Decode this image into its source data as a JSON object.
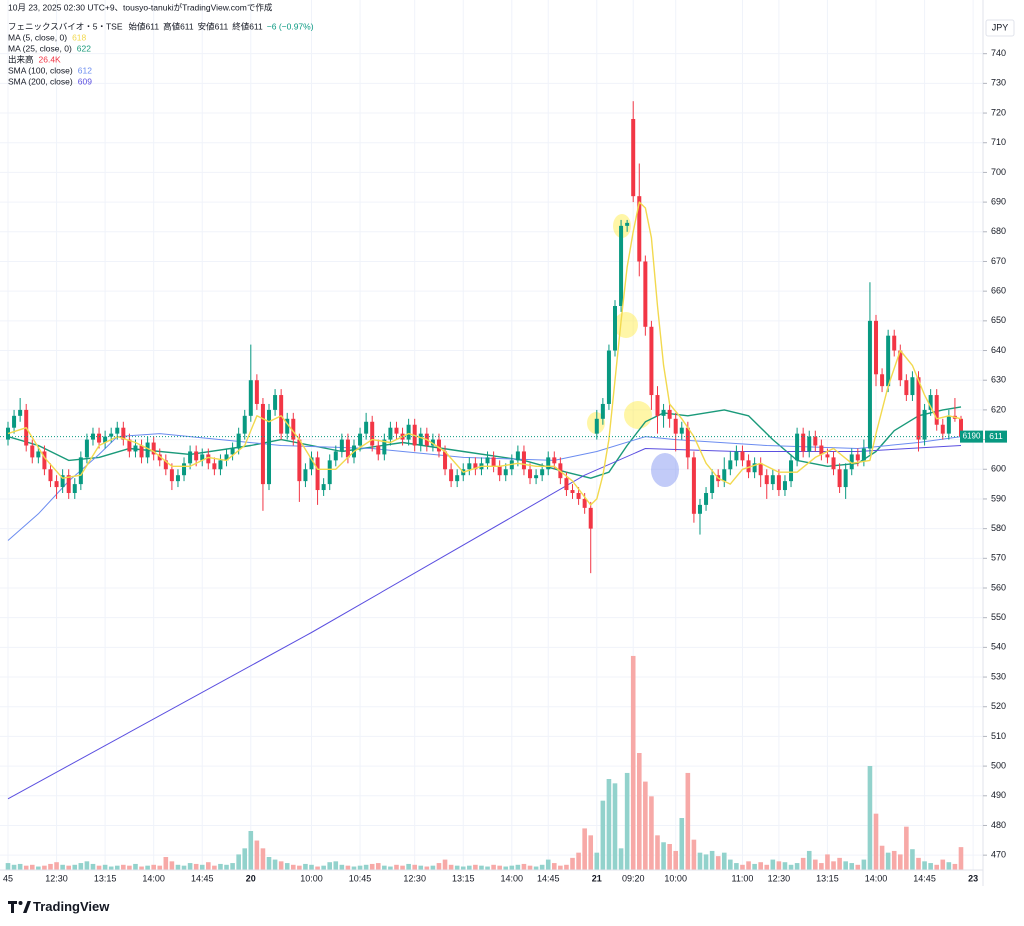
{
  "chart_data": {
    "type": "candlestick",
    "header": "10月 23, 2025 02:30 UTC+9、tousyo-tanukiがTradingView.comで作成",
    "symbol": "フェニックスバイオ・5・TSE",
    "ohlc_labels": [
      "始値611",
      "高値611",
      "安値611",
      "終値611"
    ],
    "change": "−6 (−0.97%)",
    "currency": "JPY",
    "countdown_label": "6190",
    "watermark": "TradingView",
    "up_color": "#089981",
    "down_color": "#f23645",
    "volume_up_color": "#92d2cc",
    "volume_down_color": "#f7a9a7",
    "ylim": [
      465,
      750
    ],
    "yticks": [
      470,
      480,
      490,
      500,
      510,
      520,
      530,
      540,
      550,
      560,
      570,
      580,
      590,
      600,
      610,
      620,
      630,
      640,
      650,
      660,
      670,
      680,
      690,
      700,
      710,
      720,
      730,
      740
    ],
    "grid": true,
    "vlim": [
      0,
      300
    ],
    "volume_name": "出来高",
    "volume_label": "26.4K",
    "categories": [
      "45",
      null,
      null,
      null,
      null,
      null,
      null,
      null,
      "12:30",
      null,
      null,
      null,
      null,
      null,
      null,
      null,
      "13:15",
      null,
      null,
      null,
      null,
      null,
      null,
      null,
      "14:00",
      null,
      null,
      null,
      null,
      null,
      null,
      null,
      "14:45",
      null,
      null,
      null,
      null,
      null,
      null,
      null,
      "20",
      null,
      null,
      null,
      null,
      null,
      null,
      null,
      null,
      null,
      "10:00",
      null,
      null,
      null,
      null,
      null,
      null,
      null,
      "10:45",
      null,
      null,
      null,
      null,
      null,
      null,
      null,
      null,
      "12:30",
      null,
      null,
      null,
      null,
      null,
      null,
      null,
      "13:15",
      null,
      null,
      null,
      null,
      null,
      null,
      null,
      "14:00",
      null,
      null,
      null,
      null,
      null,
      "14:45",
      null,
      null,
      null,
      null,
      null,
      null,
      null,
      "21",
      null,
      null,
      null,
      null,
      null,
      "09:20",
      null,
      null,
      null,
      null,
      null,
      null,
      "10:00",
      null,
      null,
      null,
      null,
      null,
      null,
      null,
      null,
      null,
      null,
      "11:00",
      null,
      null,
      null,
      null,
      null,
      "12:30",
      null,
      null,
      null,
      null,
      null,
      null,
      null,
      "13:15",
      null,
      null,
      null,
      null,
      null,
      null,
      null,
      "14:00",
      null,
      null,
      null,
      null,
      null,
      null,
      null,
      "14:45",
      null,
      null,
      null,
      null,
      null,
      null,
      null,
      "23"
    ],
    "ohlc": [
      [
        610,
        616,
        608,
        614
      ],
      [
        614,
        620,
        612,
        618
      ],
      [
        618,
        624,
        616,
        620
      ],
      [
        620,
        622,
        606,
        608
      ],
      [
        608,
        610,
        602,
        604
      ],
      [
        604,
        608,
        602,
        606
      ],
      [
        606,
        608,
        598,
        600
      ],
      [
        600,
        602,
        594,
        596
      ],
      [
        596,
        598,
        590,
        594
      ],
      [
        594,
        600,
        592,
        598
      ],
      [
        598,
        600,
        590,
        592
      ],
      [
        592,
        597,
        590,
        595
      ],
      [
        595,
        606,
        593,
        604
      ],
      [
        604,
        612,
        602,
        610
      ],
      [
        610,
        614,
        608,
        612
      ],
      [
        612,
        614,
        607,
        609
      ],
      [
        609,
        613,
        607,
        611
      ],
      [
        611,
        614,
        609,
        612
      ],
      [
        612,
        616,
        610,
        614
      ],
      [
        614,
        616,
        608,
        610
      ],
      [
        610,
        612,
        604,
        606
      ],
      [
        606,
        610,
        604,
        608
      ],
      [
        608,
        610,
        602,
        604
      ],
      [
        604,
        611,
        602,
        609
      ],
      [
        609,
        611,
        603,
        605
      ],
      [
        605,
        607,
        601,
        603
      ],
      [
        603,
        605,
        598,
        600
      ],
      [
        600,
        602,
        593,
        596
      ],
      [
        596,
        600,
        594,
        598
      ],
      [
        598,
        604,
        596,
        602
      ],
      [
        602,
        608,
        600,
        606
      ],
      [
        606,
        608,
        601,
        603
      ],
      [
        603,
        607,
        601,
        605
      ],
      [
        605,
        607,
        600,
        602
      ],
      [
        602,
        604,
        598,
        600
      ],
      [
        600,
        605,
        598,
        603
      ],
      [
        603,
        607,
        601,
        605
      ],
      [
        605,
        609,
        603,
        607
      ],
      [
        607,
        614,
        605,
        612
      ],
      [
        612,
        620,
        610,
        618
      ],
      [
        618,
        642,
        616,
        630
      ],
      [
        630,
        632,
        620,
        622
      ],
      [
        622,
        624,
        586,
        595
      ],
      [
        595,
        622,
        593,
        620
      ],
      [
        620,
        627,
        618,
        625
      ],
      [
        625,
        627,
        610,
        612
      ],
      [
        612,
        619,
        610,
        617
      ],
      [
        617,
        619,
        608,
        610
      ],
      [
        610,
        612,
        589,
        596
      ],
      [
        596,
        602,
        594,
        600
      ],
      [
        600,
        606,
        598,
        604
      ],
      [
        604,
        606,
        588,
        593
      ],
      [
        593,
        597,
        591,
        595
      ],
      [
        595,
        605,
        593,
        603
      ],
      [
        603,
        608,
        601,
        606
      ],
      [
        606,
        612,
        604,
        610
      ],
      [
        610,
        612,
        602,
        604
      ],
      [
        604,
        610,
        602,
        608
      ],
      [
        608,
        614,
        606,
        612
      ],
      [
        612,
        619,
        610,
        616
      ],
      [
        616,
        618,
        606,
        608
      ],
      [
        608,
        610,
        603,
        605
      ],
      [
        605,
        612,
        603,
        610
      ],
      [
        610,
        616,
        608,
        614
      ],
      [
        614,
        616,
        610,
        612
      ],
      [
        612,
        614,
        608,
        610
      ],
      [
        610,
        617,
        608,
        615
      ],
      [
        615,
        617,
        606,
        608
      ],
      [
        608,
        614,
        606,
        612
      ],
      [
        612,
        614,
        606,
        608
      ],
      [
        608,
        612,
        606,
        610
      ],
      [
        610,
        612,
        604,
        606
      ],
      [
        606,
        608,
        598,
        600
      ],
      [
        600,
        602,
        594,
        596
      ],
      [
        596,
        600,
        594,
        598
      ],
      [
        598,
        602,
        596,
        600
      ],
      [
        600,
        604,
        598,
        602
      ],
      [
        602,
        604,
        598,
        600
      ],
      [
        600,
        604,
        598,
        602
      ],
      [
        602,
        606,
        600,
        604
      ],
      [
        604,
        606,
        599,
        601
      ],
      [
        601,
        603,
        596,
        598
      ],
      [
        598,
        602,
        596,
        600
      ],
      [
        600,
        605,
        598,
        603
      ],
      [
        603,
        608,
        601,
        606
      ],
      [
        606,
        608,
        598,
        600
      ],
      [
        600,
        602,
        595,
        597
      ],
      [
        597,
        600,
        595,
        598
      ],
      [
        598,
        602,
        596,
        600
      ],
      [
        600,
        606,
        598,
        604
      ],
      [
        604,
        606,
        600,
        602
      ],
      [
        602,
        604,
        595,
        597
      ],
      [
        597,
        599,
        591,
        593
      ],
      [
        593,
        595,
        590,
        592
      ],
      [
        592,
        594,
        588,
        590
      ],
      [
        590,
        592,
        585,
        587
      ],
      [
        587,
        589,
        565,
        580
      ],
      [
        612,
        620,
        610,
        617
      ],
      [
        617,
        624,
        615,
        622
      ],
      [
        622,
        642,
        620,
        640
      ],
      [
        640,
        657,
        638,
        655
      ],
      [
        655,
        684,
        653,
        682
      ],
      [
        682,
        684,
        680,
        683
      ],
      [
        718,
        724,
        690,
        692
      ],
      [
        692,
        703,
        665,
        670
      ],
      [
        670,
        672,
        645,
        648
      ],
      [
        648,
        650,
        620,
        625
      ],
      [
        625,
        628,
        612,
        618
      ],
      [
        618,
        622,
        614,
        620
      ],
      [
        620,
        622,
        614,
        617
      ],
      [
        617,
        619,
        606,
        612
      ],
      [
        612,
        616,
        610,
        614
      ],
      [
        614,
        616,
        600,
        604
      ],
      [
        604,
        606,
        582,
        585
      ],
      [
        585,
        590,
        578,
        588
      ],
      [
        588,
        594,
        586,
        592
      ],
      [
        592,
        600,
        590,
        598
      ],
      [
        598,
        600,
        594,
        596
      ],
      [
        596,
        604,
        594,
        600
      ],
      [
        600,
        606,
        598,
        603
      ],
      [
        603,
        608,
        601,
        606
      ],
      [
        606,
        608,
        601,
        603
      ],
      [
        603,
        605,
        597,
        599
      ],
      [
        599,
        604,
        597,
        602
      ],
      [
        602,
        604,
        594,
        598
      ],
      [
        598,
        600,
        590,
        595
      ],
      [
        595,
        600,
        593,
        598
      ],
      [
        598,
        600,
        591,
        593
      ],
      [
        593,
        598,
        591,
        596
      ],
      [
        596,
        605,
        594,
        603
      ],
      [
        603,
        614,
        601,
        612
      ],
      [
        612,
        614,
        604,
        606
      ],
      [
        606,
        613,
        604,
        611
      ],
      [
        611,
        613,
        606,
        608
      ],
      [
        608,
        610,
        603,
        605
      ],
      [
        605,
        607,
        602,
        604
      ],
      [
        604,
        606,
        598,
        600
      ],
      [
        600,
        602,
        592,
        594
      ],
      [
        594,
        602,
        590,
        600
      ],
      [
        600,
        607,
        598,
        605
      ],
      [
        605,
        607,
        601,
        603
      ],
      [
        603,
        610,
        601,
        607
      ],
      [
        607,
        663,
        605,
        650
      ],
      [
        650,
        652,
        628,
        632
      ],
      [
        632,
        634,
        626,
        628
      ],
      [
        628,
        647,
        626,
        645
      ],
      [
        645,
        647,
        638,
        640
      ],
      [
        640,
        642,
        628,
        630
      ],
      [
        630,
        632,
        623,
        625
      ],
      [
        625,
        633,
        623,
        631
      ],
      [
        631,
        633,
        606,
        610
      ],
      [
        610,
        622,
        608,
        620
      ],
      [
        620,
        627,
        618,
        625
      ],
      [
        625,
        627,
        613,
        615
      ],
      [
        615,
        617,
        610,
        612
      ],
      [
        612,
        620,
        610,
        618
      ],
      [
        618,
        624,
        616,
        617
      ],
      [
        617,
        618,
        609,
        611
      ],
      null,
      null
    ],
    "volume": [
      8,
      6,
      7,
      5,
      6,
      4,
      5,
      7,
      9,
      6,
      5,
      6,
      8,
      10,
      7,
      5,
      6,
      4,
      5,
      6,
      5,
      7,
      4,
      5,
      6,
      5,
      15,
      10,
      6,
      5,
      8,
      7,
      6,
      9,
      5,
      7,
      6,
      8,
      18,
      25,
      45,
      34,
      25,
      15,
      12,
      10,
      8,
      6,
      5,
      7,
      6,
      4,
      5,
      9,
      10,
      6,
      5,
      4,
      5,
      6,
      7,
      8,
      5,
      4,
      6,
      5,
      7,
      6,
      5,
      4,
      5,
      8,
      12,
      6,
      5,
      4,
      5,
      6,
      5,
      4,
      6,
      5,
      4,
      5,
      6,
      7,
      5,
      4,
      6,
      12,
      8,
      5,
      6,
      14,
      20,
      48,
      40,
      20,
      80,
      105,
      100,
      25,
      112,
      247,
      135,
      102,
      85,
      40,
      32,
      30,
      22,
      60,
      112,
      35,
      20,
      18,
      22,
      16,
      20,
      12,
      8,
      6,
      10,
      7,
      9,
      6,
      12,
      10,
      9,
      6,
      8,
      14,
      22,
      12,
      8,
      18,
      10,
      14,
      10,
      8,
      6,
      12,
      120,
      65,
      28,
      20,
      22,
      18,
      50,
      24,
      14,
      10,
      8,
      6,
      12,
      9,
      7,
      26.4,
      null,
      null
    ],
    "series": [
      {
        "name": "MA (5, close, 0)",
        "legend_value": "618",
        "color": "#f2d94e",
        "width": 1.4,
        "x": [
          0,
          3,
          6,
          9,
          12,
          15,
          18,
          21,
          24,
          27,
          30,
          33,
          36,
          39,
          41,
          43,
          45,
          48,
          51,
          54,
          57,
          60,
          63,
          66,
          69,
          72,
          75,
          78,
          81,
          84,
          87,
          90,
          93,
          96,
          97,
          98,
          99,
          100,
          101,
          102,
          103,
          104,
          105,
          106,
          107,
          108,
          109,
          111,
          113,
          115,
          117,
          119,
          121,
          124,
          127,
          130,
          133,
          136,
          139,
          142,
          143,
          145,
          147,
          149,
          151,
          153,
          155,
          157
        ],
        "values": [
          612,
          614,
          604,
          597,
          598,
          608,
          611,
          609,
          606,
          601,
          601,
          604,
          603,
          608,
          618,
          616,
          618,
          610,
          600,
          600,
          606,
          610,
          609,
          612,
          610,
          606,
          599,
          601,
          601,
          602,
          601,
          601,
          596,
          588,
          590,
          598,
          610,
          630,
          650,
          668,
          680,
          690,
          688,
          678,
          655,
          635,
          622,
          617,
          611,
          602,
          597,
          595,
          600,
          602,
          599,
          599,
          604,
          607,
          602,
          603,
          612,
          628,
          640,
          635,
          625,
          617,
          618,
          617
        ]
      },
      {
        "name": "MA (25, close, 0)",
        "legend_value": "622",
        "color": "#1a9a7a",
        "width": 1.4,
        "x": [
          0,
          5,
          10,
          15,
          20,
          30,
          40,
          45,
          55,
          65,
          75,
          85,
          92,
          96,
          99,
          102,
          105,
          108,
          112,
          118,
          122,
          126,
          130,
          135,
          140,
          143,
          146,
          150,
          154,
          157
        ],
        "values": [
          611,
          608,
          603,
          604,
          607,
          605,
          608,
          610,
          606,
          609,
          606,
          603,
          599,
          597,
          599,
          608,
          616,
          619,
          618,
          620,
          618,
          610,
          603,
          601,
          602,
          606,
          613,
          618,
          620,
          621
        ]
      },
      {
        "name": "SMA (100, close)",
        "legend_value": "612",
        "color": "#6b8cf0",
        "width": 1,
        "x": [
          0,
          5,
          10,
          15,
          18,
          25,
          35,
          45,
          60,
          75,
          90,
          97,
          105,
          110,
          125,
          140,
          150,
          157
        ],
        "values": [
          576,
          585,
          596,
          605,
          611,
          612,
          610,
          608,
          607,
          604,
          603,
          606,
          611,
          610,
          608,
          607,
          609,
          611
        ]
      },
      {
        "name": "SMA (200, close)",
        "legend_value": "609",
        "color": "#5b4fe0",
        "width": 1,
        "x": [
          0,
          50,
          95,
          105,
          120,
          140,
          157
        ],
        "values": [
          489,
          545,
          598,
          607,
          606,
          606,
          608
        ]
      }
    ]
  }
}
